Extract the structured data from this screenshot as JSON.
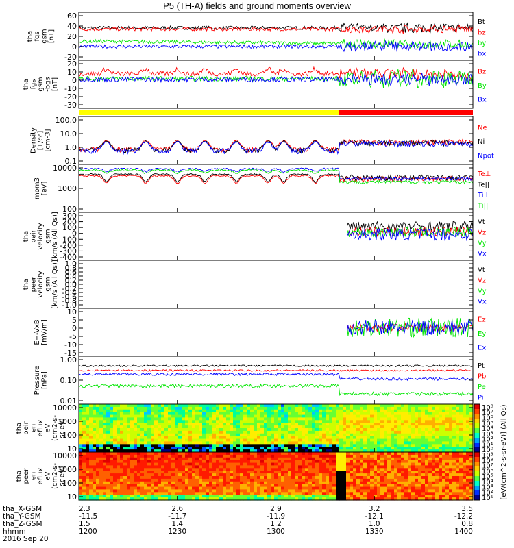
{
  "title": "P5 (TH-A) fields and ground moments overview",
  "colors": {
    "black": "#000000",
    "red": "#ff0000",
    "green": "#00e600",
    "blue": "#0000ff",
    "yellow": "#ffff00"
  },
  "chart_data": [
    {
      "type": "line",
      "ylabel": [
        "tha",
        "fgs",
        "gsm",
        "[nT]"
      ],
      "yticks": [
        "60",
        "40",
        "20",
        "0",
        "-20"
      ],
      "ylim": [
        -20,
        60
      ],
      "legend": [
        "Bt",
        "bz",
        "by",
        "bx"
      ]
    },
    {
      "type": "line",
      "ylabel": [
        "tha",
        "fgs",
        "gsm",
        "-bgs",
        "[nT]"
      ],
      "yticks": [
        "20",
        "10",
        "0",
        "-10",
        "-20",
        "-30"
      ],
      "ylim": [
        -35,
        25
      ],
      "legend": [
        "Bz",
        "By",
        "Bx"
      ]
    },
    {
      "type": "bar",
      "segments": [
        {
          "from": "1200",
          "to": "1317",
          "color": "yellow"
        },
        {
          "from": "1317",
          "to": "1400",
          "color": "red"
        }
      ]
    },
    {
      "type": "line",
      "ylabel": [
        "Density",
        "[1/cc]",
        "[cm-3]"
      ],
      "yticks": [
        "100.0",
        "10.0",
        "1.0",
        "0.1"
      ],
      "ylim": [
        0.1,
        100
      ],
      "scale": "log",
      "legend": [
        "Ne",
        "Ni",
        "Npot"
      ]
    },
    {
      "type": "line",
      "ylabel": [
        "mom3",
        "[eV]"
      ],
      "yticks": [
        "10000",
        "1000",
        "100"
      ],
      "ylim": [
        30,
        10000
      ],
      "scale": "log",
      "legend": [
        "Te⊥",
        "Te||",
        "Ti⊥",
        "Ti||"
      ]
    },
    {
      "type": "line",
      "ylabel": [
        "tha",
        "peir",
        "velocity",
        "gsm",
        "[km/s (All Qs)]"
      ],
      "yticks": [
        "300",
        "200",
        "100",
        "0",
        "-100",
        "-200",
        "-300",
        "-400"
      ],
      "ylim": [
        -400,
        300
      ],
      "legend": [
        "Vt",
        "Vz",
        "Vy",
        "Vx"
      ]
    },
    {
      "type": "line",
      "ylabel": [
        "tha",
        "peer",
        "velocity",
        "gsm",
        "[km/s (All Qs)]"
      ],
      "yticks": [
        "1.0",
        "0.8",
        "0.6",
        "0.4",
        "0.2",
        "0.0",
        "-0.2",
        "-0.4",
        "-0.6",
        "-0.8",
        "-1.0"
      ],
      "ylim": [
        -1,
        1
      ],
      "legend": [
        "Vt",
        "Vz",
        "Vy",
        "Vx"
      ]
    },
    {
      "type": "line",
      "ylabel": [
        "E=-VxB",
        "[mV/m]"
      ],
      "yticks": [
        "10",
        "5",
        "0",
        "-5",
        "-10",
        "-15"
      ],
      "ylim": [
        -15,
        10
      ],
      "legend": [
        "Ez",
        "Ey",
        "Ex"
      ]
    },
    {
      "type": "line",
      "ylabel": [
        "Pressure",
        "[nPa]"
      ],
      "yticks": [
        "1.00",
        "0.10",
        "0.01"
      ],
      "ylim": [
        0.01,
        3
      ],
      "scale": "log",
      "legend": [
        "Pt",
        "Pb",
        "Pe",
        "Pi"
      ]
    },
    {
      "type": "heatmap",
      "ylabel": [
        "tha",
        "peir",
        "en",
        "eflux",
        "eV",
        "(cm2-s-",
        "sr-eV)"
      ],
      "yticks": [
        "10000",
        "1000",
        "100",
        "10"
      ],
      "ylim": [
        5,
        30000
      ],
      "scale": "log"
    },
    {
      "type": "heatmap",
      "ylabel": [
        "tha",
        "peer",
        "en",
        "eflux",
        "eV",
        "(cm2-s-",
        "sr-eV)"
      ],
      "yticks": [
        "10000",
        "1000",
        "100",
        "10"
      ],
      "ylim": [
        5,
        30000
      ],
      "scale": "log"
    }
  ],
  "colorbar": {
    "label": "[eV/(cm^2-s-sr-eV)] (All Qs)",
    "top": [
      "10⁸",
      "10⁷",
      "10⁶",
      "10⁵",
      "10⁴",
      "10³",
      "10²",
      "10¹",
      "10⁰"
    ],
    "bottom": [
      "10⁹",
      "10⁸",
      "10⁷",
      "10⁶",
      "10⁵",
      "10⁴",
      "10³",
      "10²",
      "10¹"
    ]
  },
  "footer": {
    "rows": [
      {
        "label": "tha_X-GSM",
        "values": [
          "2.3",
          "2.6",
          "2.9",
          "3.2",
          "3.5"
        ]
      },
      {
        "label": "tha_Y-GSM",
        "values": [
          "-11.5",
          "-11.7",
          "-11.9",
          "-12.1",
          "-12.2"
        ]
      },
      {
        "label": "tha_Z-GSM",
        "values": [
          "1.5",
          "1.4",
          "1.2",
          "1.0",
          "0.8"
        ]
      },
      {
        "label": "hhmm",
        "values": [
          "1200",
          "1230",
          "1300",
          "1330",
          "1400"
        ]
      }
    ],
    "date": "2016 Sep 20"
  }
}
